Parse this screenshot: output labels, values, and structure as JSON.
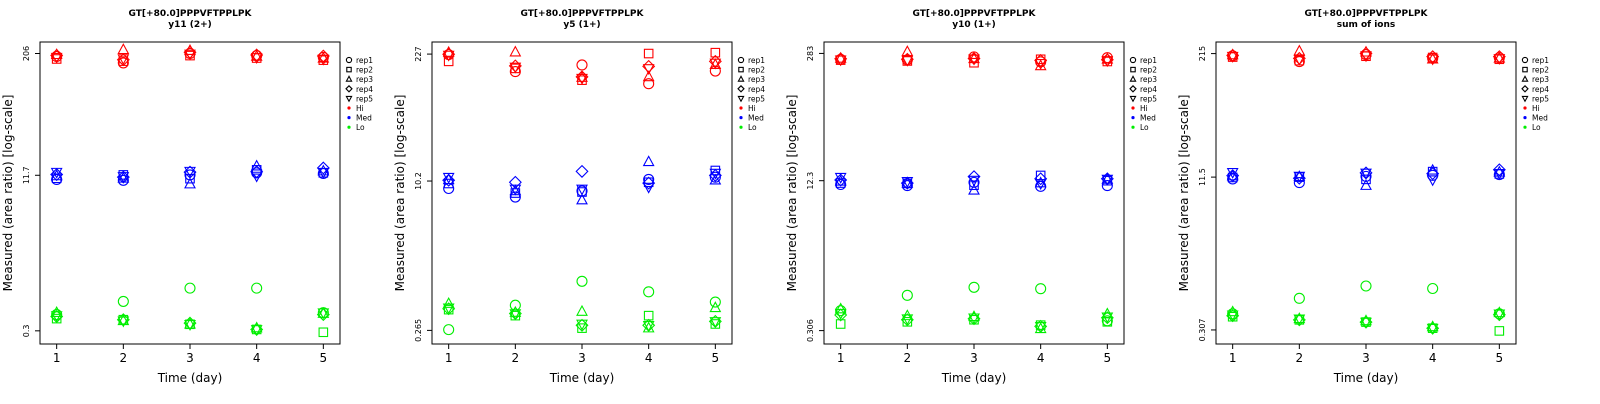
{
  "chart_data": [
    {
      "type": "scatter",
      "title": "GT[+80.0]PPPVFTPPLPK",
      "subtitle": "y11 (2+)",
      "xlabel": "Time (day)",
      "ylabel": "Measured (area ratio) [log-scale]",
      "log_y": true,
      "xlim": [
        0.75,
        5.25
      ],
      "ylim": [
        0.22,
        270
      ],
      "x_ticks": [
        "1",
        "2",
        "3",
        "4",
        "5"
      ],
      "y_ticks": [
        {
          "value": 0.3,
          "label": "0.3"
        },
        {
          "value": 11.7,
          "label": "11.7"
        },
        {
          "value": 206,
          "label": "206"
        }
      ],
      "legend": {
        "position": "right",
        "entries": [
          {
            "label": "rep1",
            "marker": "circle"
          },
          {
            "label": "rep2",
            "marker": "square"
          },
          {
            "label": "rep3",
            "marker": "triangle"
          },
          {
            "label": "rep4",
            "marker": "diamond"
          },
          {
            "label": "rep5",
            "marker": "triangle-down"
          },
          {
            "label": "Hi",
            "color": "#ff0000"
          },
          {
            "label": "Med",
            "color": "#0000ff"
          },
          {
            "label": "Lo",
            "color": "#00ee00"
          }
        ]
      },
      "series": [
        {
          "name": "Hi",
          "color": "#ff0000",
          "reps": [
            {
              "rep": "rep1",
              "values": [
                192,
                165,
                206,
                196,
                188
              ]
            },
            {
              "rep": "rep2",
              "values": [
                181,
                172,
                196,
                185,
                176
              ]
            },
            {
              "rep": "rep3",
              "values": [
                200,
                225,
                220,
                192,
                184
              ]
            },
            {
              "rep": "rep4",
              "values": [
                197,
                178,
                212,
                199,
                194
              ]
            },
            {
              "rep": "rep5",
              "values": [
                189,
                183,
                204,
                188,
                181
              ]
            }
          ]
        },
        {
          "name": "Med",
          "color": "#0000ff",
          "reps": [
            {
              "rep": "rep1",
              "values": [
                10.6,
                10.4,
                11.8,
                12.4,
                12.2
              ]
            },
            {
              "rep": "rep2",
              "values": [
                10.9,
                11.8,
                10.8,
                13.3,
                12.4
              ]
            },
            {
              "rep": "rep3",
              "values": [
                11.5,
                10.9,
                9.5,
                14.5,
                12.9
              ]
            },
            {
              "rep": "rep4",
              "values": [
                11.9,
                11.2,
                12.6,
                12.7,
                13.9
              ]
            },
            {
              "rep": "rep5",
              "values": [
                12.6,
                11.4,
                12.9,
                11.5,
                12.6
              ]
            }
          ]
        },
        {
          "name": "Lo",
          "color": "#00ee00",
          "reps": [
            {
              "rep": "rep1",
              "values": [
                0.44,
                0.6,
                0.82,
                0.82,
                0.46
              ]
            },
            {
              "rep": "rep2",
              "values": [
                0.4,
                0.39,
                0.35,
                0.31,
                0.29
              ]
            },
            {
              "rep": "rep3",
              "values": [
                0.46,
                0.38,
                0.35,
                0.32,
                0.45
              ]
            },
            {
              "rep": "rep4",
              "values": [
                0.42,
                0.39,
                0.36,
                0.31,
                0.44
              ]
            },
            {
              "rep": "rep5",
              "values": [
                0.43,
                0.38,
                0.35,
                0.31,
                0.46
              ]
            }
          ]
        }
      ]
    },
    {
      "type": "scatter",
      "title": "GT[+80.0]PPPVFTPPLPK",
      "subtitle": "y5 (1+)",
      "xlabel": "Time (day)",
      "ylabel": "Measured (area ratio) [log-scale]",
      "log_y": true,
      "xlim": [
        0.75,
        5.25
      ],
      "ylim": [
        0.19,
        305
      ],
      "x_ticks": [
        "1",
        "2",
        "3",
        "4",
        "5"
      ],
      "y_ticks": [
        {
          "value": 0.265,
          "label": "0.265"
        },
        {
          "value": 10.2,
          "label": "10.2"
        },
        {
          "value": 227,
          "label": "227"
        }
      ],
      "legend": {
        "position": "right",
        "entries": [
          {
            "label": "rep1",
            "marker": "circle"
          },
          {
            "label": "rep2",
            "marker": "square"
          },
          {
            "label": "rep3",
            "marker": "triangle"
          },
          {
            "label": "rep4",
            "marker": "diamond"
          },
          {
            "label": "rep5",
            "marker": "triangle-down"
          },
          {
            "label": "Hi",
            "color": "#ff0000"
          },
          {
            "label": "Med",
            "color": "#0000ff"
          },
          {
            "label": "Lo",
            "color": "#00ee00"
          }
        ]
      },
      "series": [
        {
          "name": "Hi",
          "color": "#ff0000",
          "reps": [
            {
              "rep": "rep1",
              "values": [
                224,
                148,
                174,
                110,
                150
              ]
            },
            {
              "rep": "rep2",
              "values": [
                190,
                160,
                120,
                230,
                235
              ]
            },
            {
              "rep": "rep3",
              "values": [
                236,
                238,
                128,
                130,
                175
              ]
            },
            {
              "rep": "rep4",
              "values": [
                226,
                170,
                130,
                168,
                190
              ]
            },
            {
              "rep": "rep5",
              "values": [
                222,
                166,
                126,
                160,
                183
              ]
            }
          ]
        },
        {
          "name": "Med",
          "color": "#0000ff",
          "reps": [
            {
              "rep": "rep1",
              "values": [
                8.5,
                6.9,
                8.0,
                10.6,
                11.2
              ]
            },
            {
              "rep": "rep2",
              "values": [
                9.6,
                7.6,
                7.8,
                9.9,
                13.2
              ]
            },
            {
              "rep": "rep3",
              "values": [
                10.5,
                8.0,
                6.4,
                16.3,
                10.4
              ]
            },
            {
              "rep": "rep4",
              "values": [
                10.4,
                9.9,
                12.9,
                9.7,
                11.7
              ]
            },
            {
              "rep": "rep5",
              "values": [
                11.2,
                8.4,
                8.4,
                8.8,
                12.4
              ]
            }
          ]
        },
        {
          "name": "Lo",
          "color": "#00ee00",
          "reps": [
            {
              "rep": "rep1",
              "values": [
                0.27,
                0.49,
                0.88,
                0.68,
                0.53
              ]
            },
            {
              "rep": "rep2",
              "values": [
                0.44,
                0.38,
                0.28,
                0.38,
                0.31
              ]
            },
            {
              "rep": "rep3",
              "values": [
                0.51,
                0.41,
                0.42,
                0.28,
                0.46
              ]
            },
            {
              "rep": "rep4",
              "values": [
                0.45,
                0.4,
                0.3,
                0.3,
                0.33
              ]
            },
            {
              "rep": "rep5",
              "values": [
                0.46,
                0.4,
                0.31,
                0.3,
                0.33
              ]
            }
          ]
        }
      ]
    },
    {
      "type": "scatter",
      "title": "GT[+80.0]PPPVFTPPLPK",
      "subtitle": "y10 (1+)",
      "xlabel": "Time (day)",
      "ylabel": "Measured (area ratio) [log-scale]",
      "log_y": true,
      "xlim": [
        0.75,
        5.25
      ],
      "ylim": [
        0.22,
        375
      ],
      "x_ticks": [
        "1",
        "2",
        "3",
        "4",
        "5"
      ],
      "y_ticks": [
        {
          "value": 0.306,
          "label": "0.306"
        },
        {
          "value": 12.3,
          "label": "12.3"
        },
        {
          "value": 283,
          "label": "283"
        }
      ],
      "legend": {
        "position": "right",
        "entries": [
          {
            "label": "rep1",
            "marker": "circle"
          },
          {
            "label": "rep2",
            "marker": "square"
          },
          {
            "label": "rep3",
            "marker": "triangle"
          },
          {
            "label": "rep4",
            "marker": "diamond"
          },
          {
            "label": "rep5",
            "marker": "triangle-down"
          },
          {
            "label": "Hi",
            "color": "#ff0000"
          },
          {
            "label": "Med",
            "color": "#0000ff"
          },
          {
            "label": "Lo",
            "color": "#00ee00"
          }
        ]
      },
      "series": [
        {
          "name": "Hi",
          "color": "#ff0000",
          "reps": [
            {
              "rep": "rep1",
              "values": [
                244,
                242,
                260,
                230,
                255
              ]
            },
            {
              "rep": "rep2",
              "values": [
                240,
                235,
                225,
                245,
                232
              ]
            },
            {
              "rep": "rep3",
              "values": [
                250,
                295,
                248,
                208,
                245
              ]
            },
            {
              "rep": "rep4",
              "values": [
                248,
                245,
                250,
                238,
                242
              ]
            },
            {
              "rep": "rep5",
              "values": [
                242,
                240,
                248,
                222,
                238
              ]
            }
          ]
        },
        {
          "name": "Med",
          "color": "#0000ff",
          "reps": [
            {
              "rep": "rep1",
              "values": [
                11.2,
                10.9,
                11.8,
                10.7,
                10.9
              ]
            },
            {
              "rep": "rep2",
              "values": [
                11.6,
                11.5,
                11.0,
                14.0,
                12.3
              ]
            },
            {
              "rep": "rep3",
              "values": [
                12.1,
                11.5,
                9.7,
                11.6,
                12.7
              ]
            },
            {
              "rep": "rep4",
              "values": [
                12.5,
                11.6,
                13.6,
                12.9,
                12.9
              ]
            },
            {
              "rep": "rep5",
              "values": [
                13.4,
                12.1,
                12.5,
                11.5,
                12.8
              ]
            }
          ]
        },
        {
          "name": "Lo",
          "color": "#00ee00",
          "reps": [
            {
              "rep": "rep1",
              "values": [
                0.5,
                0.73,
                0.89,
                0.86,
                0.39
              ]
            },
            {
              "rep": "rep2",
              "values": [
                0.36,
                0.38,
                0.4,
                0.35,
                0.38
              ]
            },
            {
              "rep": "rep3",
              "values": [
                0.52,
                0.44,
                0.43,
                0.32,
                0.46
              ]
            },
            {
              "rep": "rep4",
              "values": [
                0.45,
                0.4,
                0.41,
                0.34,
                0.42
              ]
            },
            {
              "rep": "rep5",
              "values": [
                0.47,
                0.41,
                0.42,
                0.34,
                0.43
              ]
            }
          ]
        }
      ]
    },
    {
      "type": "scatter",
      "title": "GT[+80.0]PPPVFTPPLPK",
      "subtitle": "sum of ions",
      "xlabel": "Time (day)",
      "ylabel": "Measured (area ratio) [log-scale]",
      "log_y": true,
      "xlim": [
        0.75,
        5.25
      ],
      "ylim": [
        0.22,
        283
      ],
      "x_ticks": [
        "1",
        "2",
        "3",
        "4",
        "5"
      ],
      "y_ticks": [
        {
          "value": 0.307,
          "label": "0.307"
        },
        {
          "value": 11.5,
          "label": "11.5"
        },
        {
          "value": 215,
          "label": "215"
        }
      ],
      "legend": {
        "position": "right",
        "entries": [
          {
            "label": "rep1",
            "marker": "circle"
          },
          {
            "label": "rep2",
            "marker": "square"
          },
          {
            "label": "rep3",
            "marker": "triangle"
          },
          {
            "label": "rep4",
            "marker": "diamond"
          },
          {
            "label": "rep5",
            "marker": "triangle-down"
          },
          {
            "label": "Hi",
            "color": "#ff0000"
          },
          {
            "label": "Med",
            "color": "#0000ff"
          },
          {
            "label": "Lo",
            "color": "#00ee00"
          }
        ]
      },
      "series": [
        {
          "name": "Hi",
          "color": "#ff0000",
          "reps": [
            {
              "rep": "rep1",
              "values": [
                204,
                178,
                210,
                192,
                195
              ]
            },
            {
              "rep": "rep2",
              "values": [
                198,
                182,
                202,
                196,
                188
              ]
            },
            {
              "rep": "rep3",
              "values": [
                208,
                228,
                222,
                188,
                192
              ]
            },
            {
              "rep": "rep4",
              "values": [
                206,
                192,
                216,
                200,
                200
              ]
            },
            {
              "rep": "rep5",
              "values": [
                202,
                188,
                205,
                190,
                192
              ]
            }
          ]
        },
        {
          "name": "Med",
          "color": "#0000ff",
          "reps": [
            {
              "rep": "rep1",
              "values": [
                11.0,
                10.1,
                11.7,
                12.0,
                12.2
              ]
            },
            {
              "rep": "rep2",
              "values": [
                11.4,
                11.5,
                10.9,
                13.1,
                12.4
              ]
            },
            {
              "rep": "rep3",
              "values": [
                11.8,
                11.6,
                9.4,
                13.5,
                12.9
              ]
            },
            {
              "rep": "rep4",
              "values": [
                11.9,
                11.2,
                12.7,
                12.5,
                13.7
              ]
            },
            {
              "rep": "rep5",
              "values": [
                12.9,
                11.8,
                12.7,
                10.8,
                12.6
              ]
            }
          ]
        },
        {
          "name": "Lo",
          "color": "#00ee00",
          "reps": [
            {
              "rep": "rep1",
              "values": [
                0.45,
                0.65,
                0.87,
                0.82,
                0.45
              ]
            },
            {
              "rep": "rep2",
              "values": [
                0.42,
                0.39,
                0.37,
                0.32,
                0.3
              ]
            },
            {
              "rep": "rep3",
              "values": [
                0.47,
                0.4,
                0.38,
                0.33,
                0.46
              ]
            },
            {
              "rep": "rep4",
              "values": [
                0.43,
                0.39,
                0.37,
                0.32,
                0.44
              ]
            },
            {
              "rep": "rep5",
              "values": [
                0.44,
                0.4,
                0.37,
                0.32,
                0.45
              ]
            }
          ]
        }
      ]
    }
  ]
}
